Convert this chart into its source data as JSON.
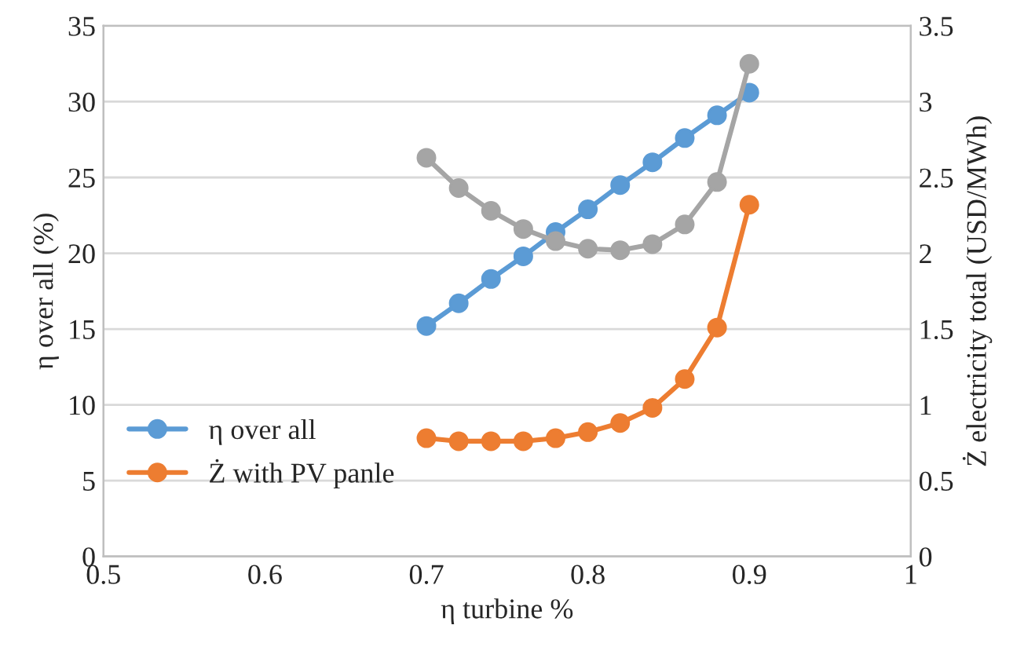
{
  "chart_data": {
    "type": "line",
    "xlabel": "η turbine %",
    "ylabel": "η over all (%)",
    "y2label": "Ż electricity total (USD/MWh)",
    "x": [
      0.7,
      0.72,
      0.74,
      0.76,
      0.78,
      0.8,
      0.82,
      0.84,
      0.86,
      0.88,
      0.9
    ],
    "series": [
      {
        "name": "η over all",
        "color": "#5b9bd5",
        "values": [
          15.2,
          16.7,
          18.3,
          19.8,
          21.4,
          22.9,
          24.5,
          26.0,
          27.6,
          29.1,
          30.6
        ]
      },
      {
        "name": "Ż with PV panle",
        "color": "#ed7d31",
        "axis": "y2",
        "values": [
          0.78,
          0.76,
          0.76,
          0.76,
          0.78,
          0.82,
          0.88,
          0.98,
          1.17,
          1.51,
          2.32
        ]
      },
      {
        "color": "#a5a5a5",
        "axis": "y2",
        "values": [
          2.63,
          2.43,
          2.28,
          2.16,
          2.08,
          2.03,
          2.02,
          2.06,
          2.19,
          2.47,
          3.25
        ]
      }
    ],
    "xlim": [
      0.5,
      1
    ],
    "xticks": [
      0.5,
      0.6,
      0.7,
      0.8,
      0.9,
      {
        "value": 1,
        "label": "1"
      }
    ],
    "ylim": [
      0,
      35
    ],
    "yticks": [
      0,
      5,
      10,
      15,
      20,
      25,
      30,
      35
    ],
    "y2lim": [
      0,
      3.5
    ],
    "y2ticks": [
      0,
      0.5,
      1,
      1.5,
      2,
      2.5,
      3,
      3.5
    ],
    "grid": "y",
    "legend": "bottom left",
    "marker": "circle",
    "line_style": "solid"
  }
}
